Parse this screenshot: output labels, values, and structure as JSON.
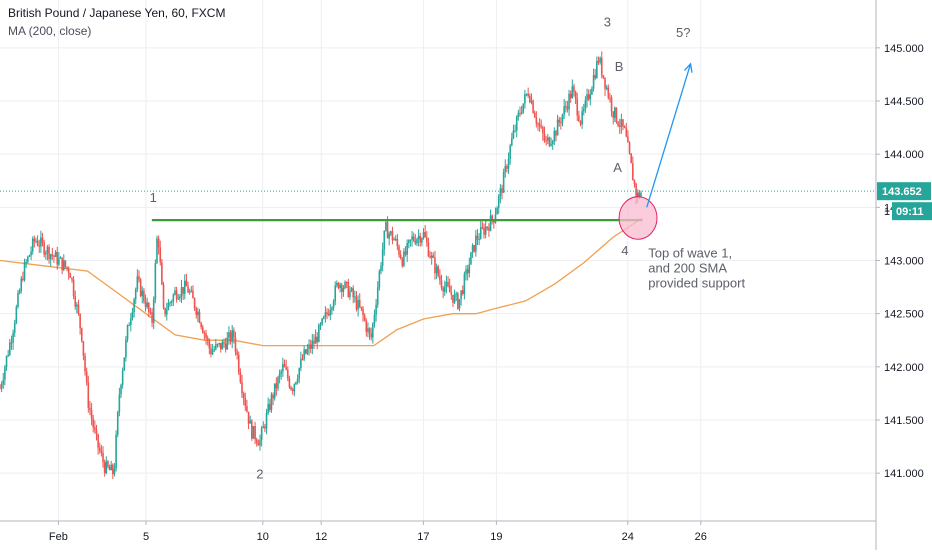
{
  "header": {
    "symbol_line": "British Pound / Japanese Yen, 60, FXCM",
    "indicator_line": "MA (200, close)"
  },
  "colors": {
    "up": "#26a69a",
    "down": "#ef5350",
    "ma": "#f0a050",
    "support": "#3d9a3d",
    "arrow": "#2196f3",
    "circle_fill": "#f8bbd0",
    "circle_stroke": "#e91e63",
    "price_tag": "#26a69a",
    "price_line": "#26a69a"
  },
  "chart_data": {
    "type": "candlestick",
    "y_axis": {
      "min": 140.55,
      "max": 145.45,
      "ticks": [
        141.0,
        141.5,
        142.0,
        142.5,
        143.0,
        143.5,
        144.0,
        144.5,
        145.0
      ],
      "tick_labels": [
        "141.000",
        "141.500",
        "142.000",
        "142.500",
        "143.000",
        "143.500",
        "144.000",
        "144.500",
        "145.000"
      ]
    },
    "x_axis": {
      "range": [
        0,
        30
      ],
      "ticks": [
        {
          "pos": 2,
          "label": "Feb"
        },
        {
          "pos": 5,
          "label": "5"
        },
        {
          "pos": 9,
          "label": "10"
        },
        {
          "pos": 11,
          "label": "12"
        },
        {
          "pos": 14.5,
          "label": "17"
        },
        {
          "pos": 17,
          "label": "19"
        },
        {
          "pos": 21.5,
          "label": "24"
        },
        {
          "pos": 24,
          "label": "26"
        }
      ]
    },
    "close_path": [
      [
        0,
        141.8
      ],
      [
        0.4,
        142.3
      ],
      [
        0.8,
        142.9
      ],
      [
        1.2,
        143.2
      ],
      [
        1.6,
        143.1
      ],
      [
        2.0,
        143.0
      ],
      [
        2.4,
        142.9
      ],
      [
        2.8,
        142.3
      ],
      [
        3.0,
        141.7
      ],
      [
        3.3,
        141.3
      ],
      [
        3.6,
        141.05
      ],
      [
        3.9,
        141.0
      ],
      [
        4.1,
        141.8
      ],
      [
        4.4,
        142.4
      ],
      [
        4.7,
        142.8
      ],
      [
        5.0,
        142.6
      ],
      [
        5.2,
        142.4
      ],
      [
        5.4,
        143.3
      ],
      [
        5.6,
        142.5
      ],
      [
        6.0,
        142.7
      ],
      [
        6.4,
        142.75
      ],
      [
        6.8,
        142.5
      ],
      [
        7.2,
        142.15
      ],
      [
        7.6,
        142.2
      ],
      [
        8.0,
        142.3
      ],
      [
        8.3,
        141.8
      ],
      [
        8.6,
        141.4
      ],
      [
        8.9,
        141.3
      ],
      [
        9.3,
        141.7
      ],
      [
        9.7,
        142.0
      ],
      [
        10.0,
        141.8
      ],
      [
        10.4,
        142.1
      ],
      [
        10.8,
        142.25
      ],
      [
        11.2,
        142.5
      ],
      [
        11.6,
        142.8
      ],
      [
        12.0,
        142.7
      ],
      [
        12.4,
        142.5
      ],
      [
        12.7,
        142.25
      ],
      [
        13.0,
        142.9
      ],
      [
        13.2,
        143.3
      ],
      [
        13.5,
        143.2
      ],
      [
        13.8,
        143.0
      ],
      [
        14.1,
        143.2
      ],
      [
        14.5,
        143.25
      ],
      [
        14.8,
        143.0
      ],
      [
        15.1,
        142.8
      ],
      [
        15.4,
        142.7
      ],
      [
        15.7,
        142.6
      ],
      [
        16.0,
        142.9
      ],
      [
        16.3,
        143.2
      ],
      [
        16.6,
        143.3
      ],
      [
        16.9,
        143.4
      ],
      [
        17.2,
        143.7
      ],
      [
        17.5,
        144.1
      ],
      [
        17.8,
        144.4
      ],
      [
        18.1,
        144.6
      ],
      [
        18.4,
        144.3
      ],
      [
        18.7,
        144.1
      ],
      [
        19.0,
        144.2
      ],
      [
        19.3,
        144.4
      ],
      [
        19.6,
        144.6
      ],
      [
        19.9,
        144.3
      ],
      [
        20.2,
        144.6
      ],
      [
        20.5,
        144.9
      ],
      [
        20.8,
        144.6
      ],
      [
        21.0,
        144.4
      ],
      [
        21.2,
        144.3
      ],
      [
        21.4,
        144.2
      ],
      [
        21.6,
        143.9
      ],
      [
        21.8,
        143.6
      ],
      [
        22.0,
        143.65
      ]
    ],
    "ma_path": [
      [
        0,
        143.0
      ],
      [
        1.5,
        142.95
      ],
      [
        3,
        142.9
      ],
      [
        4,
        142.7
      ],
      [
        5,
        142.5
      ],
      [
        6,
        142.3
      ],
      [
        7,
        142.25
      ],
      [
        8,
        142.25
      ],
      [
        9,
        142.2
      ],
      [
        10,
        142.2
      ],
      [
        11,
        142.2
      ],
      [
        12,
        142.2
      ],
      [
        12.8,
        142.2
      ],
      [
        13.6,
        142.35
      ],
      [
        14.5,
        142.45
      ],
      [
        15.5,
        142.5
      ],
      [
        16.3,
        142.5
      ],
      [
        17,
        142.55
      ],
      [
        18,
        142.62
      ],
      [
        19,
        142.78
      ],
      [
        20,
        142.98
      ],
      [
        21,
        143.22
      ],
      [
        22,
        143.4
      ]
    ],
    "support_level": 143.38,
    "support_range": [
      5.2,
      22.0
    ],
    "last_price": 143.652,
    "last_price_label": "143.652",
    "countdown_label": "09:11",
    "countdown_prefix": "1",
    "wave_labels": [
      {
        "text": "1",
        "x": 5.25,
        "y": 143.55
      },
      {
        "text": "2",
        "x": 8.9,
        "y": 140.95
      },
      {
        "text": "3",
        "x": 20.8,
        "y": 145.2
      },
      {
        "text": "B",
        "x": 21.2,
        "y": 144.78
      },
      {
        "text": "A",
        "x": 21.15,
        "y": 143.83
      },
      {
        "text": "4",
        "x": 21.4,
        "y": 143.05
      },
      {
        "text": "5?",
        "x": 23.4,
        "y": 145.1
      }
    ],
    "annotation_lines": [
      "Top of wave 1,",
      "and 200 SMA",
      "provided support"
    ],
    "arrow": {
      "from": [
        22.15,
        143.5
      ],
      "to": [
        23.65,
        144.85
      ]
    },
    "circle": {
      "x": 21.85,
      "y": 143.4,
      "rx_units": 0.65,
      "ry_units": 0.2
    }
  }
}
